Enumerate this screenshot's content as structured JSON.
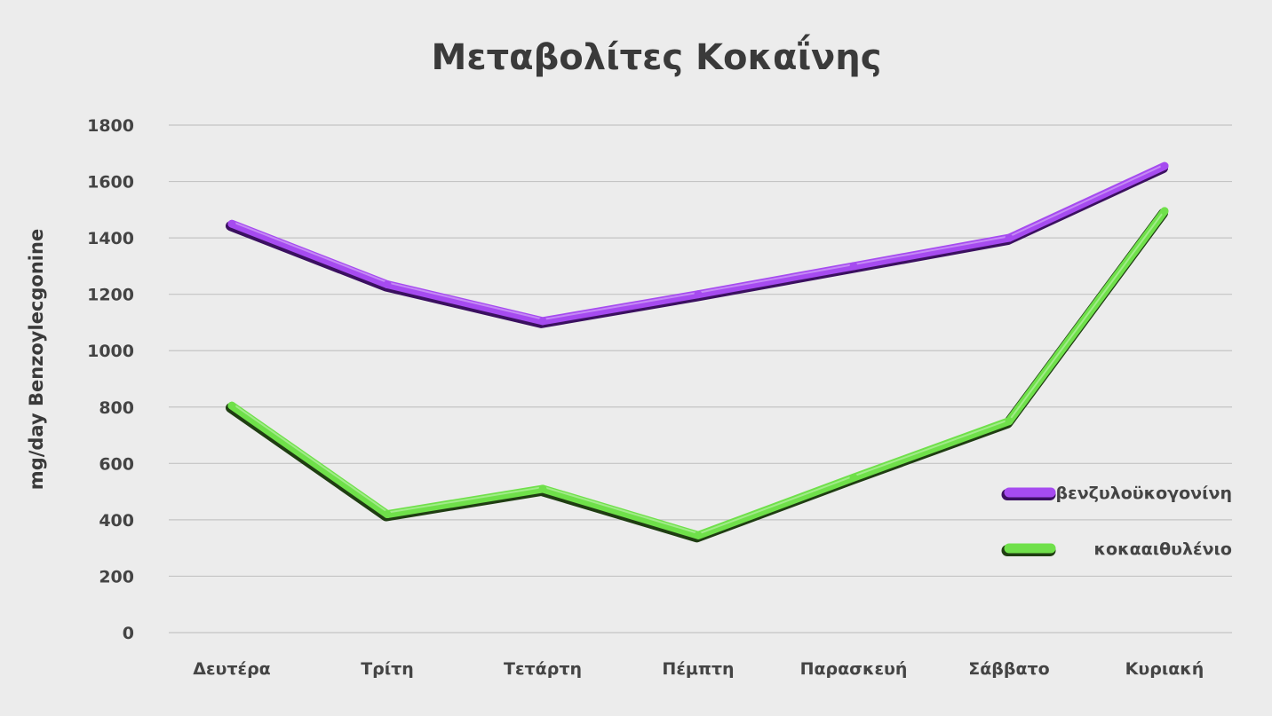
{
  "chart_data": {
    "type": "line",
    "title": "Μεταβολίτες Κοκαΐνης",
    "xlabel": "",
    "ylabel": "mg/day Benzoylecgonine",
    "categories": [
      "Δευτέρα",
      "Τρίτη",
      "Τετάρτη",
      "Πέμπτη",
      "Παρασκευή",
      "Σάββατο",
      "Κυριακή"
    ],
    "ylim": [
      0,
      1800
    ],
    "yticks": [
      0,
      200,
      400,
      600,
      800,
      1000,
      1200,
      1400,
      1600,
      1800
    ],
    "grid": true,
    "legend_position": "right",
    "series": [
      {
        "name": "βενζυλοϋκογονίνη",
        "color": "#a64bf0",
        "shadow_color": "#3b1060",
        "values": [
          1450,
          1235,
          1105,
          1200,
          1300,
          1400,
          1655
        ]
      },
      {
        "name": "κοκααιθυλένιο",
        "color": "#6fe04a",
        "shadow_color": "#1f3d12",
        "values": [
          805,
          420,
          510,
          345,
          550,
          750,
          1495
        ]
      }
    ]
  }
}
